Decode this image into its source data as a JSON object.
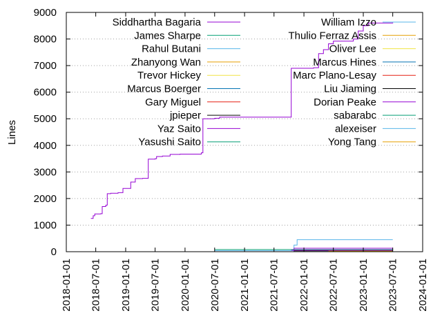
{
  "chart_data": {
    "type": "line",
    "title": "",
    "xlabel": "",
    "ylabel": "Lines",
    "x_axis": {
      "type": "date",
      "range": [
        "2018-01-01",
        "2024-01-01"
      ],
      "ticks": [
        "2018-01-01",
        "2018-07-01",
        "2019-01-01",
        "2019-07-01",
        "2020-01-01",
        "2020-07-01",
        "2021-01-01",
        "2021-07-01",
        "2022-01-01",
        "2022-07-01",
        "2023-01-01",
        "2023-07-01",
        "2024-01-01"
      ]
    },
    "y_axis": {
      "range": [
        0,
        9000
      ],
      "ticks": [
        0,
        1000,
        2000,
        3000,
        4000,
        5000,
        6000,
        7000,
        8000,
        9000
      ]
    },
    "grid": "horizontal dotted",
    "legend_placement": "top, two columns",
    "series": [
      {
        "name": "Siddhartha Bagaria",
        "color": "#9400d3",
        "points": [
          [
            "2018-06-01",
            1250
          ],
          [
            "2018-06-15",
            1350
          ],
          [
            "2018-06-25",
            1420
          ],
          [
            "2018-08-01",
            1430
          ],
          [
            "2018-08-10",
            1700
          ],
          [
            "2018-09-01",
            1750
          ],
          [
            "2018-09-10",
            2180
          ],
          [
            "2018-10-01",
            2200
          ],
          [
            "2018-11-15",
            2220
          ],
          [
            "2018-12-15",
            2380
          ],
          [
            "2019-02-01",
            2620
          ],
          [
            "2019-03-01",
            2750
          ],
          [
            "2019-04-15",
            2760
          ],
          [
            "2019-05-20",
            3480
          ],
          [
            "2019-07-01",
            3500
          ],
          [
            "2019-07-10",
            3580
          ],
          [
            "2019-08-15",
            3600
          ],
          [
            "2019-10-01",
            3660
          ],
          [
            "2019-12-01",
            3670
          ],
          [
            "2020-04-10",
            3720
          ],
          [
            "2020-04-20",
            5000
          ],
          [
            "2020-07-01",
            5020
          ],
          [
            "2020-08-01",
            5060
          ],
          [
            "2021-10-10",
            5060
          ],
          [
            "2021-10-15",
            6900
          ],
          [
            "2022-03-01",
            6920
          ],
          [
            "2022-04-01",
            7450
          ],
          [
            "2022-05-01",
            7600
          ],
          [
            "2022-06-01",
            7820
          ],
          [
            "2022-07-01",
            7920
          ],
          [
            "2022-11-01",
            8000
          ],
          [
            "2022-12-01",
            8300
          ],
          [
            "2023-01-01",
            8500
          ],
          [
            "2023-02-01",
            8600
          ],
          [
            "2023-07-01",
            8620
          ]
        ]
      },
      {
        "name": "James Sharpe",
        "color": "#009e73",
        "points": []
      },
      {
        "name": "Rahul Butani",
        "color": "#56b4e9",
        "points": [
          [
            "2020-07-01",
            40
          ],
          [
            "2021-10-15",
            40
          ],
          [
            "2021-11-01",
            250
          ],
          [
            "2021-11-20",
            450
          ],
          [
            "2023-07-01",
            450
          ]
        ]
      },
      {
        "name": "Zhanyong Wan",
        "color": "#e69f00",
        "points": []
      },
      {
        "name": "Trevor Hickey",
        "color": "#f0e442",
        "points": []
      },
      {
        "name": "Marcus Boerger",
        "color": "#0072b2",
        "points": []
      },
      {
        "name": "Gary Miguel",
        "color": "#e51e10",
        "points": []
      },
      {
        "name": "jpieper",
        "color": "#000000",
        "points": []
      },
      {
        "name": "Yaz Saito",
        "color": "#9400d3",
        "points": [
          [
            "2021-10-15",
            0
          ],
          [
            "2021-11-01",
            130
          ],
          [
            "2023-07-01",
            130
          ]
        ]
      },
      {
        "name": "Yasushi Saito",
        "color": "#009e73",
        "points": [
          [
            "2020-07-01",
            80
          ],
          [
            "2023-07-01",
            90
          ]
        ]
      },
      {
        "name": "William Izzo",
        "color": "#56b4e9",
        "points": []
      },
      {
        "name": "Thulio Ferraz Assis",
        "color": "#e69f00",
        "points": []
      },
      {
        "name": "Oliver Lee",
        "color": "#f0e442",
        "points": []
      },
      {
        "name": "Marcus Hines",
        "color": "#0072b2",
        "points": []
      },
      {
        "name": "Marc Plano-Lesay",
        "color": "#e51e10",
        "points": []
      },
      {
        "name": "Liu Jiaming",
        "color": "#000000",
        "points": [
          [
            "2021-11-01",
            30
          ],
          [
            "2023-07-01",
            30
          ]
        ]
      },
      {
        "name": "Dorian Peake",
        "color": "#9400d3",
        "points": [
          [
            "2021-10-15",
            60
          ],
          [
            "2023-07-01",
            60
          ]
        ]
      },
      {
        "name": "sabarabc",
        "color": "#009e73",
        "points": []
      },
      {
        "name": "alexeiser",
        "color": "#56b4e9",
        "points": []
      },
      {
        "name": "Yong Tang",
        "color": "#e69f00",
        "points": [
          [
            "2022-06-01",
            20
          ],
          [
            "2023-07-01",
            20
          ]
        ]
      }
    ]
  }
}
